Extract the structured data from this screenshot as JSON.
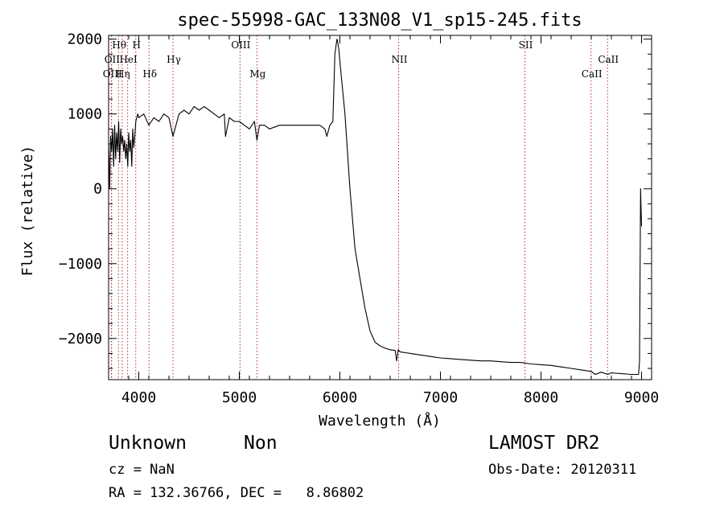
{
  "chart_data": {
    "type": "line",
    "title": "spec-55998-GAC_133N08_V1_sp15-245.fits",
    "xlabel": "Wavelength (Å)",
    "ylabel": "Flux (relative)",
    "xlim": [
      3700,
      9100
    ],
    "ylim": [
      -2550,
      2050
    ],
    "xticks": [
      4000,
      5000,
      6000,
      7000,
      8000,
      9000
    ],
    "xtick_labels": [
      "4000",
      "5000",
      "6000",
      "7000",
      "8000",
      "9000"
    ],
    "yticks": [
      2000,
      1000,
      0,
      -1000,
      -2000
    ],
    "ytick_labels": [
      "2000",
      "1000",
      "0",
      "−1000",
      "−2000"
    ],
    "grid": false,
    "lines": [
      {
        "label": "Hθ",
        "x": 3798,
        "row": 0
      },
      {
        "label": "H",
        "x": 3970,
        "row": 0
      },
      {
        "label": "OII",
        "x": 3727,
        "row": 1
      },
      {
        "label": "HeI",
        "x": 3889,
        "row": 1
      },
      {
        "label": "OIII",
        "x": 3730,
        "row": 2
      },
      {
        "label": "Hη",
        "x": 3835,
        "row": 2
      },
      {
        "label": "Hγ",
        "x": 4340,
        "row": 1
      },
      {
        "label": "Hδ",
        "x": 4102,
        "row": 2
      },
      {
        "label": "OIII",
        "x": 5007,
        "row": 0
      },
      {
        "label": "Mg",
        "x": 5175,
        "row": 2
      },
      {
        "label": "NII",
        "x": 6584,
        "row": 1
      },
      {
        "label": "SII",
        "x": 7840,
        "row": 0
      },
      {
        "label": "CaII",
        "x": 8662,
        "row": 1
      },
      {
        "label": "CaII",
        "x": 8498,
        "row": 2
      }
    ],
    "series": [
      {
        "x": [
          3700,
          3710,
          3720,
          3730,
          3740,
          3750,
          3760,
          3770,
          3780,
          3790,
          3800,
          3810,
          3820,
          3830,
          3840,
          3850,
          3860,
          3870,
          3880,
          3890,
          3900,
          3910,
          3920,
          3930,
          3940,
          3950,
          3960,
          3970,
          3980,
          3990,
          4000,
          4050,
          4100,
          4150,
          4200,
          4250,
          4300,
          4340,
          4400,
          4450,
          4500,
          4550,
          4600,
          4650,
          4700,
          4750,
          4800,
          4850,
          4862,
          4900,
          4950,
          5000,
          5050,
          5100,
          5150,
          5175,
          5200,
          5250,
          5300,
          5400,
          5500,
          5600,
          5700,
          5800,
          5850,
          5870,
          5900,
          5930,
          5950,
          5970,
          5980,
          5990,
          6000,
          6050,
          6100,
          6150,
          6200,
          6250,
          6300,
          6350,
          6400,
          6450,
          6500,
          6550,
          6564,
          6580,
          6600,
          6700,
          6800,
          6900,
          7000,
          7100,
          7200,
          7300,
          7400,
          7500,
          7600,
          7700,
          7800,
          7900,
          8000,
          8100,
          8200,
          8300,
          8400,
          8500,
          8540,
          8600,
          8662,
          8700,
          8800,
          8900,
          8970,
          8980,
          8990,
          9000
        ],
        "y": [
          600,
          0,
          700,
          500,
          800,
          300,
          850,
          400,
          750,
          500,
          900,
          350,
          800,
          600,
          700,
          500,
          650,
          400,
          600,
          300,
          750,
          500,
          650,
          300,
          800,
          550,
          700,
          900,
          950,
          1000,
          950,
          1000,
          850,
          950,
          900,
          1000,
          950,
          700,
          1000,
          1050,
          1000,
          1100,
          1050,
          1100,
          1050,
          1000,
          950,
          1000,
          700,
          950,
          900,
          900,
          850,
          800,
          900,
          650,
          850,
          850,
          800,
          850,
          850,
          850,
          850,
          850,
          800,
          700,
          850,
          900,
          1800,
          2000,
          1950,
          1850,
          1700,
          1000,
          0,
          -800,
          -1200,
          -1600,
          -1900,
          -2050,
          -2100,
          -2130,
          -2150,
          -2160,
          -2300,
          -2150,
          -2180,
          -2200,
          -2220,
          -2240,
          -2260,
          -2270,
          -2280,
          -2290,
          -2300,
          -2300,
          -2310,
          -2320,
          -2320,
          -2340,
          -2350,
          -2360,
          -2380,
          -2400,
          -2420,
          -2440,
          -2480,
          -2450,
          -2480,
          -2460,
          -2470,
          -2480,
          -2480,
          -2300,
          0,
          -500
        ]
      }
    ]
  },
  "footer": {
    "object_class": "Unknown",
    "subclass": "Non",
    "survey": "LAMOST DR2",
    "cz": "cz = NaN",
    "obs_date": "Obs-Date: 20120311",
    "coords": "RA = 132.36766, DEC =   8.86802"
  }
}
